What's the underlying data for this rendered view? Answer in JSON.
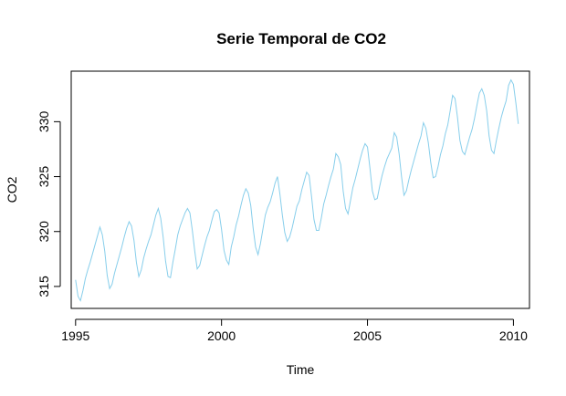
{
  "chart_data": {
    "type": "line",
    "title": "Serie Temporal de CO2",
    "xlabel": "Time",
    "ylabel": "CO2",
    "xlim": [
      1994.85,
      2010.55
    ],
    "ylim": [
      313.0,
      334.6
    ],
    "x_ticks": [
      "1995",
      "2000",
      "2005",
      "2010"
    ],
    "y_ticks": [
      "315",
      "320",
      "325",
      "330"
    ],
    "grid": false,
    "legend": "none",
    "series_color": "#87CEEB",
    "start": 1995.0,
    "frequency": 12,
    "values": [
      315.6,
      314.1,
      313.7,
      314.6,
      315.7,
      316.5,
      317.2,
      318.0,
      318.8,
      319.6,
      320.4,
      319.7,
      318.2,
      316.0,
      314.8,
      315.2,
      316.2,
      317.0,
      317.8,
      318.6,
      319.5,
      320.3,
      320.9,
      320.5,
      319.2,
      317.2,
      315.9,
      316.5,
      317.6,
      318.4,
      319.1,
      319.7,
      320.6,
      321.5,
      322.1,
      321.2,
      319.5,
      317.3,
      315.9,
      315.8,
      317.2,
      318.4,
      319.7,
      320.5,
      321.1,
      321.7,
      322.1,
      321.7,
      320.1,
      318.2,
      316.6,
      316.9,
      317.8,
      318.7,
      319.5,
      320.1,
      321.0,
      321.8,
      322.0,
      321.7,
      320.2,
      318.3,
      317.4,
      317.0,
      318.6,
      319.5,
      320.6,
      321.4,
      322.4,
      323.3,
      323.9,
      323.5,
      322.4,
      320.3,
      318.6,
      317.9,
      318.9,
      320.2,
      321.5,
      322.2,
      322.7,
      323.5,
      324.4,
      325.0,
      323.4,
      321.5,
      319.9,
      319.1,
      319.5,
      320.3,
      321.3,
      322.3,
      322.8,
      323.8,
      324.6,
      325.4,
      325.1,
      323.2,
      321.1,
      320.1,
      320.1,
      321.2,
      322.5,
      323.3,
      324.2,
      325.0,
      325.7,
      327.1,
      326.8,
      326.1,
      323.7,
      322.1,
      321.6,
      322.8,
      324.0,
      324.8,
      325.7,
      326.6,
      327.4,
      328.0,
      327.7,
      325.8,
      323.7,
      322.9,
      323.0,
      324.1,
      325.1,
      325.9,
      326.6,
      327.1,
      327.6,
      329.0,
      328.6,
      327.1,
      325.0,
      323.3,
      323.7,
      324.7,
      325.6,
      326.4,
      327.2,
      328.0,
      328.7,
      329.9,
      329.4,
      328.1,
      326.3,
      324.9,
      325.0,
      325.9,
      327.0,
      327.8,
      328.9,
      329.7,
      331.0,
      332.4,
      332.1,
      330.4,
      328.3,
      327.3,
      327.0,
      327.8,
      328.6,
      329.3,
      330.3,
      331.5,
      332.6,
      333.0,
      332.4,
      331.0,
      328.7,
      327.4,
      327.1,
      328.3,
      329.4,
      330.4,
      331.2,
      331.9,
      333.3,
      333.8,
      333.4,
      331.7,
      329.8
    ]
  }
}
